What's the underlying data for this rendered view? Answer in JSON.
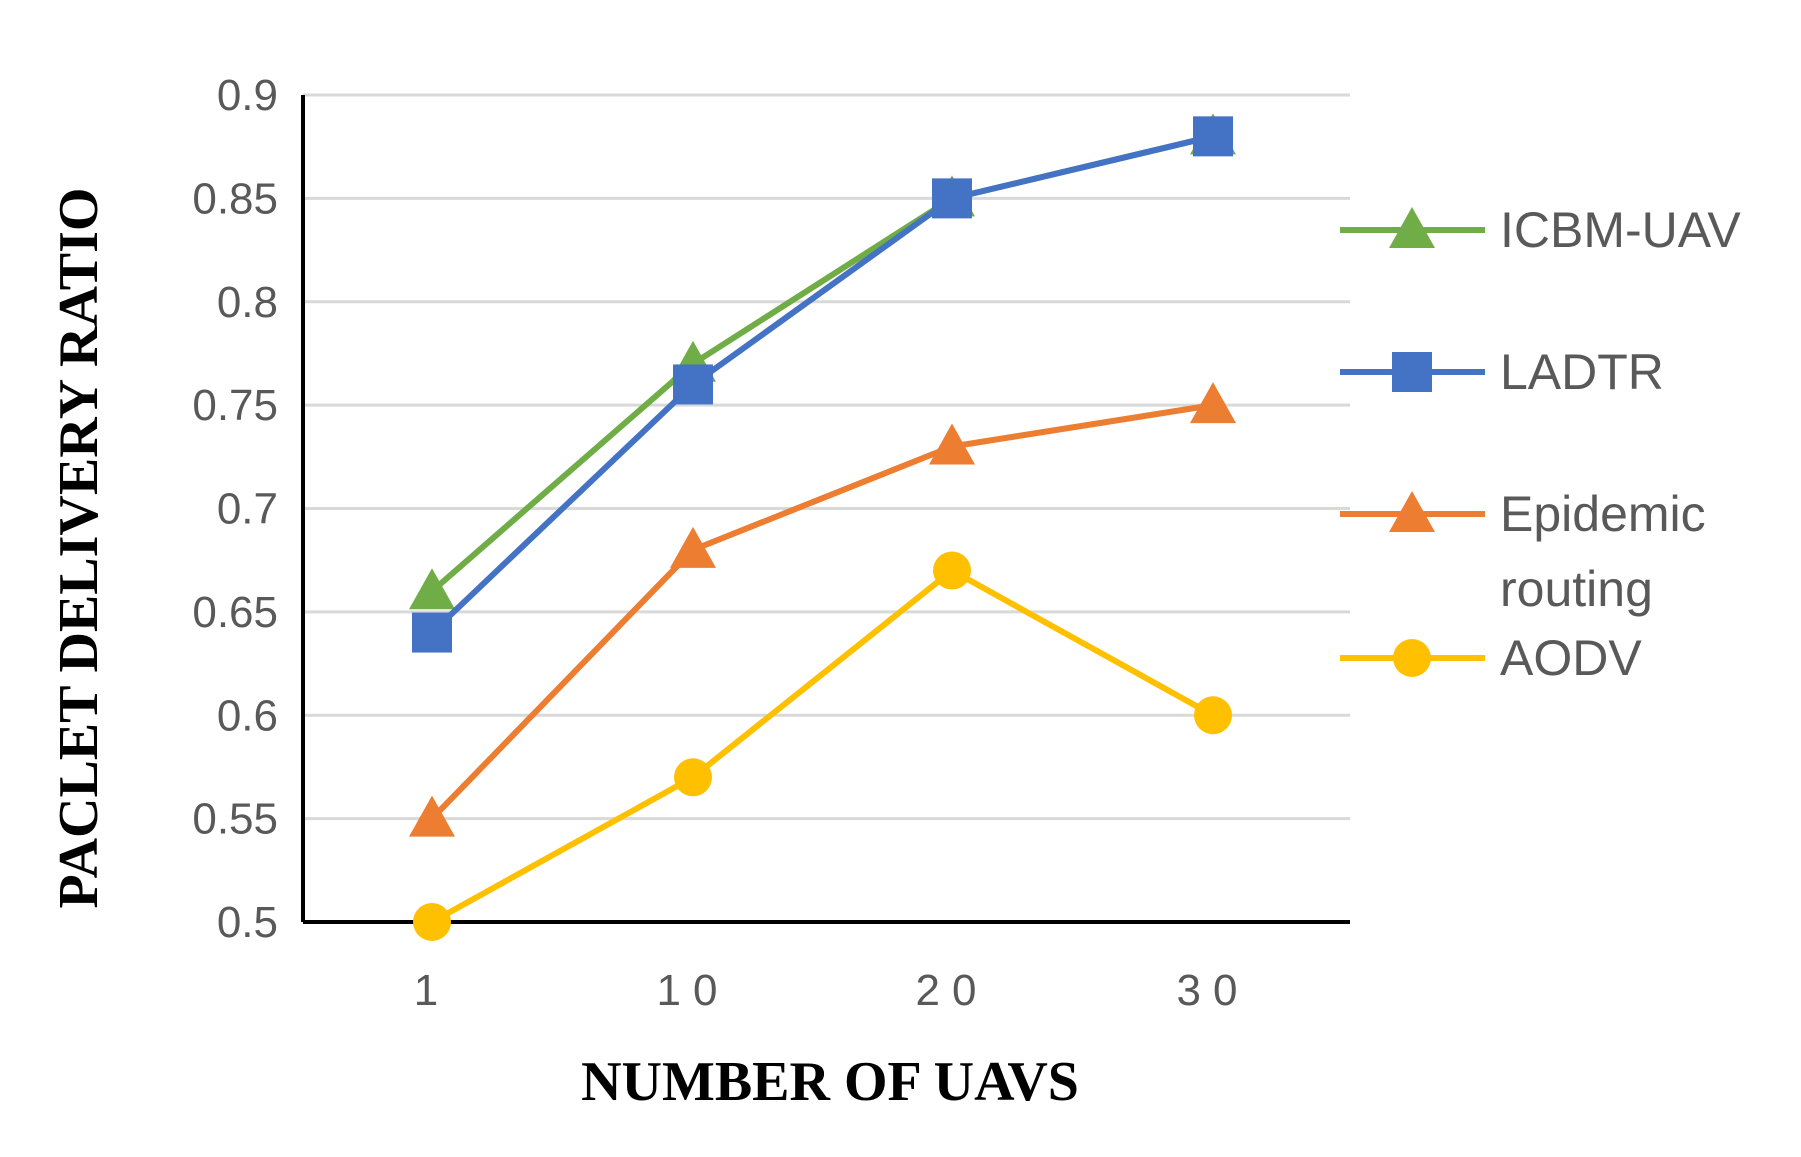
{
  "chart_data": {
    "type": "line",
    "title": "",
    "xlabel": "NUMBER OF UAVS",
    "ylabel": "PACLET DELIVERY RATIO",
    "categories": [
      "1",
      "10",
      "20",
      "30"
    ],
    "ylim": [
      0.5,
      0.9
    ],
    "yticks": [
      "0.5",
      "0.55",
      "0.6",
      "0.65",
      "0.7",
      "0.75",
      "0.8",
      "0.85",
      "0.9"
    ],
    "grid": "horizontal",
    "legend_position": "right",
    "series": [
      {
        "name": "ICBM-UAV",
        "values": [
          0.66,
          0.77,
          0.85,
          0.88
        ],
        "color": "#70AD47",
        "marker": "triangle"
      },
      {
        "name": "LADTR",
        "values": [
          0.64,
          0.76,
          0.85,
          0.88
        ],
        "color": "#4472C4",
        "marker": "square"
      },
      {
        "name": "Epidemic routing",
        "values": [
          0.55,
          0.68,
          0.73,
          0.75
        ],
        "color": "#ED7D31",
        "marker": "triangle"
      },
      {
        "name": "AODV",
        "values": [
          0.5,
          0.57,
          0.67,
          0.6
        ],
        "color": "#FFC000",
        "marker": "circle"
      }
    ]
  }
}
